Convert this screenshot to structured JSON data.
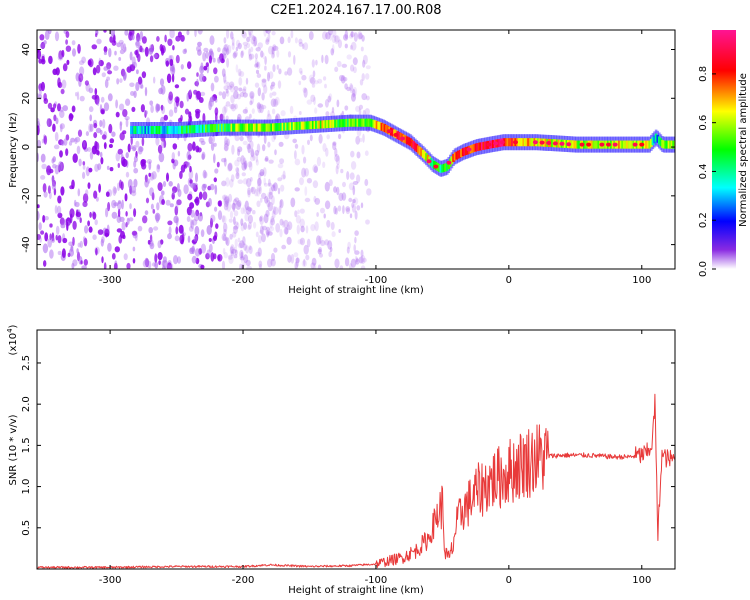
{
  "title": "C2E1.2024.167.17.00.R08",
  "chart_data": [
    {
      "type": "heatmap",
      "xlabel": "Height of straight line (km)",
      "ylabel": "Frequency (Hz)",
      "xlim": [
        -355,
        125
      ],
      "ylim": [
        -50,
        48
      ],
      "xticks": [
        -300,
        -200,
        -100,
        0,
        100
      ],
      "yticks": [
        -40,
        -20,
        0,
        20,
        40
      ],
      "colorbar": {
        "label": "Normalized spectral amplitude",
        "range": [
          0.0,
          0.98
        ],
        "ticks": [
          "0.0",
          "0.2",
          "0.4",
          "0.6",
          "0.8"
        ],
        "colormap": [
          "#ffffff",
          "#8a2be2",
          "#0000ff",
          "#00ffff",
          "#00ff00",
          "#ffff00",
          "#ff0000",
          "#ff1493"
        ]
      },
      "ridge": {
        "x": [
          -285,
          -250,
          -215,
          -200,
          -180,
          -150,
          -120,
          -105,
          -95,
          -85,
          -75,
          -65,
          -58,
          -52,
          -47,
          -42,
          -35,
          -25,
          -15,
          -5,
          0,
          20,
          50,
          80,
          105,
          110,
          115,
          125
        ],
        "freq": [
          7,
          7,
          8,
          8,
          8,
          9,
          10,
          10,
          8,
          5,
          2,
          -3,
          -7,
          -9,
          -8,
          -4,
          -2,
          0,
          1,
          2,
          2,
          2,
          1,
          1,
          1,
          4,
          1,
          1
        ],
        "amp": [
          0.35,
          0.4,
          0.5,
          0.6,
          0.55,
          0.6,
          0.55,
          0.6,
          0.7,
          0.8,
          0.85,
          0.75,
          0.5,
          0.4,
          0.55,
          0.7,
          0.8,
          0.85,
          0.9,
          0.9,
          0.8,
          0.65,
          0.6,
          0.65,
          0.6,
          0.3,
          0.55,
          0.55
        ]
      }
    },
    {
      "type": "line",
      "xlabel": "Height of straight line (km)",
      "ylabel": "SNR (10 * v/v)",
      "multiplier": "(x10",
      "multiplier_exp": "4",
      "multiplier_close": ")",
      "xlim": [
        -355,
        125
      ],
      "ylim": [
        0,
        2.9
      ],
      "xticks": [
        -300,
        -200,
        -100,
        0,
        100
      ],
      "yticks": [
        "0.5",
        "1.0",
        "1.5",
        "2.0",
        "2.5"
      ],
      "series": [
        {
          "color": "#e83a3a",
          "x": [
            -355,
            -300,
            -250,
            -200,
            -180,
            -150,
            -120,
            -100,
            -90,
            -80,
            -70,
            -60,
            -55,
            -50,
            -48,
            -45,
            -42,
            -40,
            -35,
            -30,
            -25,
            -20,
            -15,
            -10,
            -5,
            0,
            10,
            20,
            30,
            40,
            50,
            60,
            70,
            80,
            90,
            100,
            105,
            108,
            110,
            112,
            115,
            120,
            125
          ],
          "y": [
            0.02,
            0.02,
            0.03,
            0.03,
            0.05,
            0.03,
            0.04,
            0.06,
            0.1,
            0.14,
            0.22,
            0.38,
            0.62,
            0.78,
            0.2,
            0.12,
            0.28,
            0.5,
            0.72,
            0.8,
            0.92,
            0.98,
            1.05,
            1.1,
            1.12,
            1.18,
            1.28,
            1.34,
            1.37,
            1.38,
            1.38,
            1.38,
            1.37,
            1.36,
            1.36,
            1.38,
            1.42,
            1.55,
            2.05,
            0.35,
            1.38,
            1.33,
            1.33
          ]
        }
      ]
    }
  ]
}
